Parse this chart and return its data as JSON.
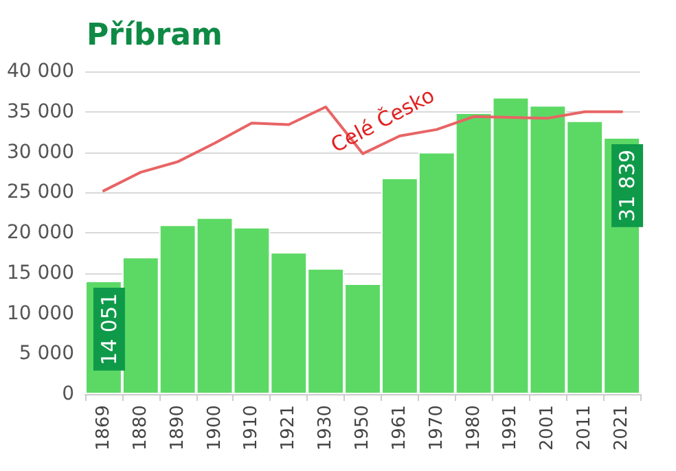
{
  "chart_data": {
    "type": "bar",
    "title": "Příbram",
    "categories": [
      "1869",
      "1880",
      "1890",
      "1900",
      "1910",
      "1921",
      "1930",
      "1950",
      "1961",
      "1970",
      "1980",
      "1991",
      "2001",
      "2011",
      "2021"
    ],
    "series": [
      {
        "color": "#5cd965",
        "values": [
          14051,
          17000,
          21000,
          21900,
          20700,
          17600,
          15600,
          13700,
          26800,
          30000,
          34900,
          36800,
          35800,
          33900,
          31839
        ],
        "value_labels": [
          "14 051",
          null,
          null,
          null,
          null,
          null,
          null,
          null,
          null,
          null,
          null,
          null,
          null,
          null,
          "31 839"
        ]
      },
      {
        "type": "line",
        "name": "Celé Česko",
        "color": "#e86464",
        "values": [
          25200,
          27500,
          28800,
          31100,
          33600,
          33400,
          35600,
          29800,
          32000,
          32800,
          34400,
          34300,
          34200,
          35000,
          35000
        ]
      }
    ],
    "ylim": [
      0,
      40000
    ],
    "yticks": [
      {
        "value": 0,
        "label": "0"
      },
      {
        "value": 5000,
        "label": "5 000"
      },
      {
        "value": 10000,
        "label": "10 000"
      },
      {
        "value": 15000,
        "label": "15 000"
      },
      {
        "value": 20000,
        "label": "20 000"
      },
      {
        "value": 25000,
        "label": "25 000"
      },
      {
        "value": 30000,
        "label": "30 000"
      },
      {
        "value": 35000,
        "label": "35 000"
      },
      {
        "value": 40000,
        "label": "40 000"
      }
    ],
    "grid": "y",
    "marker": "none",
    "line_style": "solid"
  }
}
